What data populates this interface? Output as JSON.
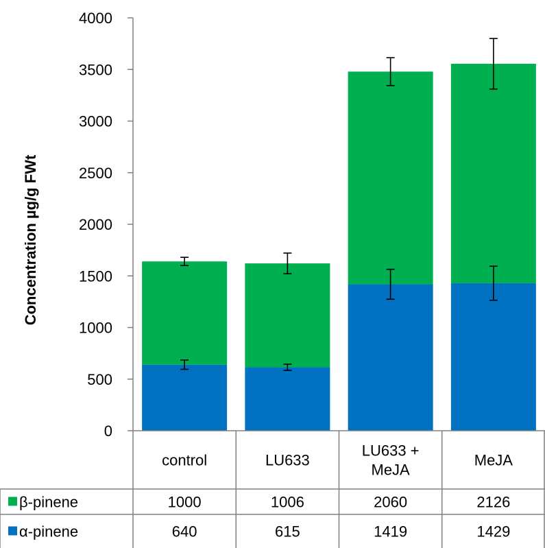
{
  "chart_data": {
    "type": "bar",
    "stacked": true,
    "categories": [
      "control",
      "LU633",
      "LU633 + MeJA",
      "MeJA"
    ],
    "category_lines": [
      [
        "control"
      ],
      [
        "LU633"
      ],
      [
        "LU633 +",
        "MeJA"
      ],
      [
        "MeJA"
      ]
    ],
    "ylabel": "Concentration µg/g FWt",
    "ylim": [
      0,
      4000
    ],
    "yticks": [
      0,
      500,
      1000,
      1500,
      2000,
      2500,
      3000,
      3500,
      4000
    ],
    "grid": false,
    "legend": "data-table",
    "series": [
      {
        "name": "α-pinene",
        "color": "#0070c0",
        "values": [
          640,
          615,
          1419,
          1429
        ],
        "error": [
          45,
          30,
          145,
          165
        ]
      },
      {
        "name": "β-pinene",
        "color": "#00b050",
        "values": [
          1000,
          1006,
          2060,
          2126
        ],
        "error": [
          40,
          100,
          135,
          245
        ]
      }
    ],
    "table_rows": [
      {
        "label": "β-pinene",
        "series_index": 1,
        "values": [
          "1000",
          "1006",
          "2060",
          "2126"
        ]
      },
      {
        "label": "α-pinene",
        "series_index": 0,
        "values": [
          "640",
          "615",
          "1419",
          "1429"
        ]
      }
    ]
  }
}
